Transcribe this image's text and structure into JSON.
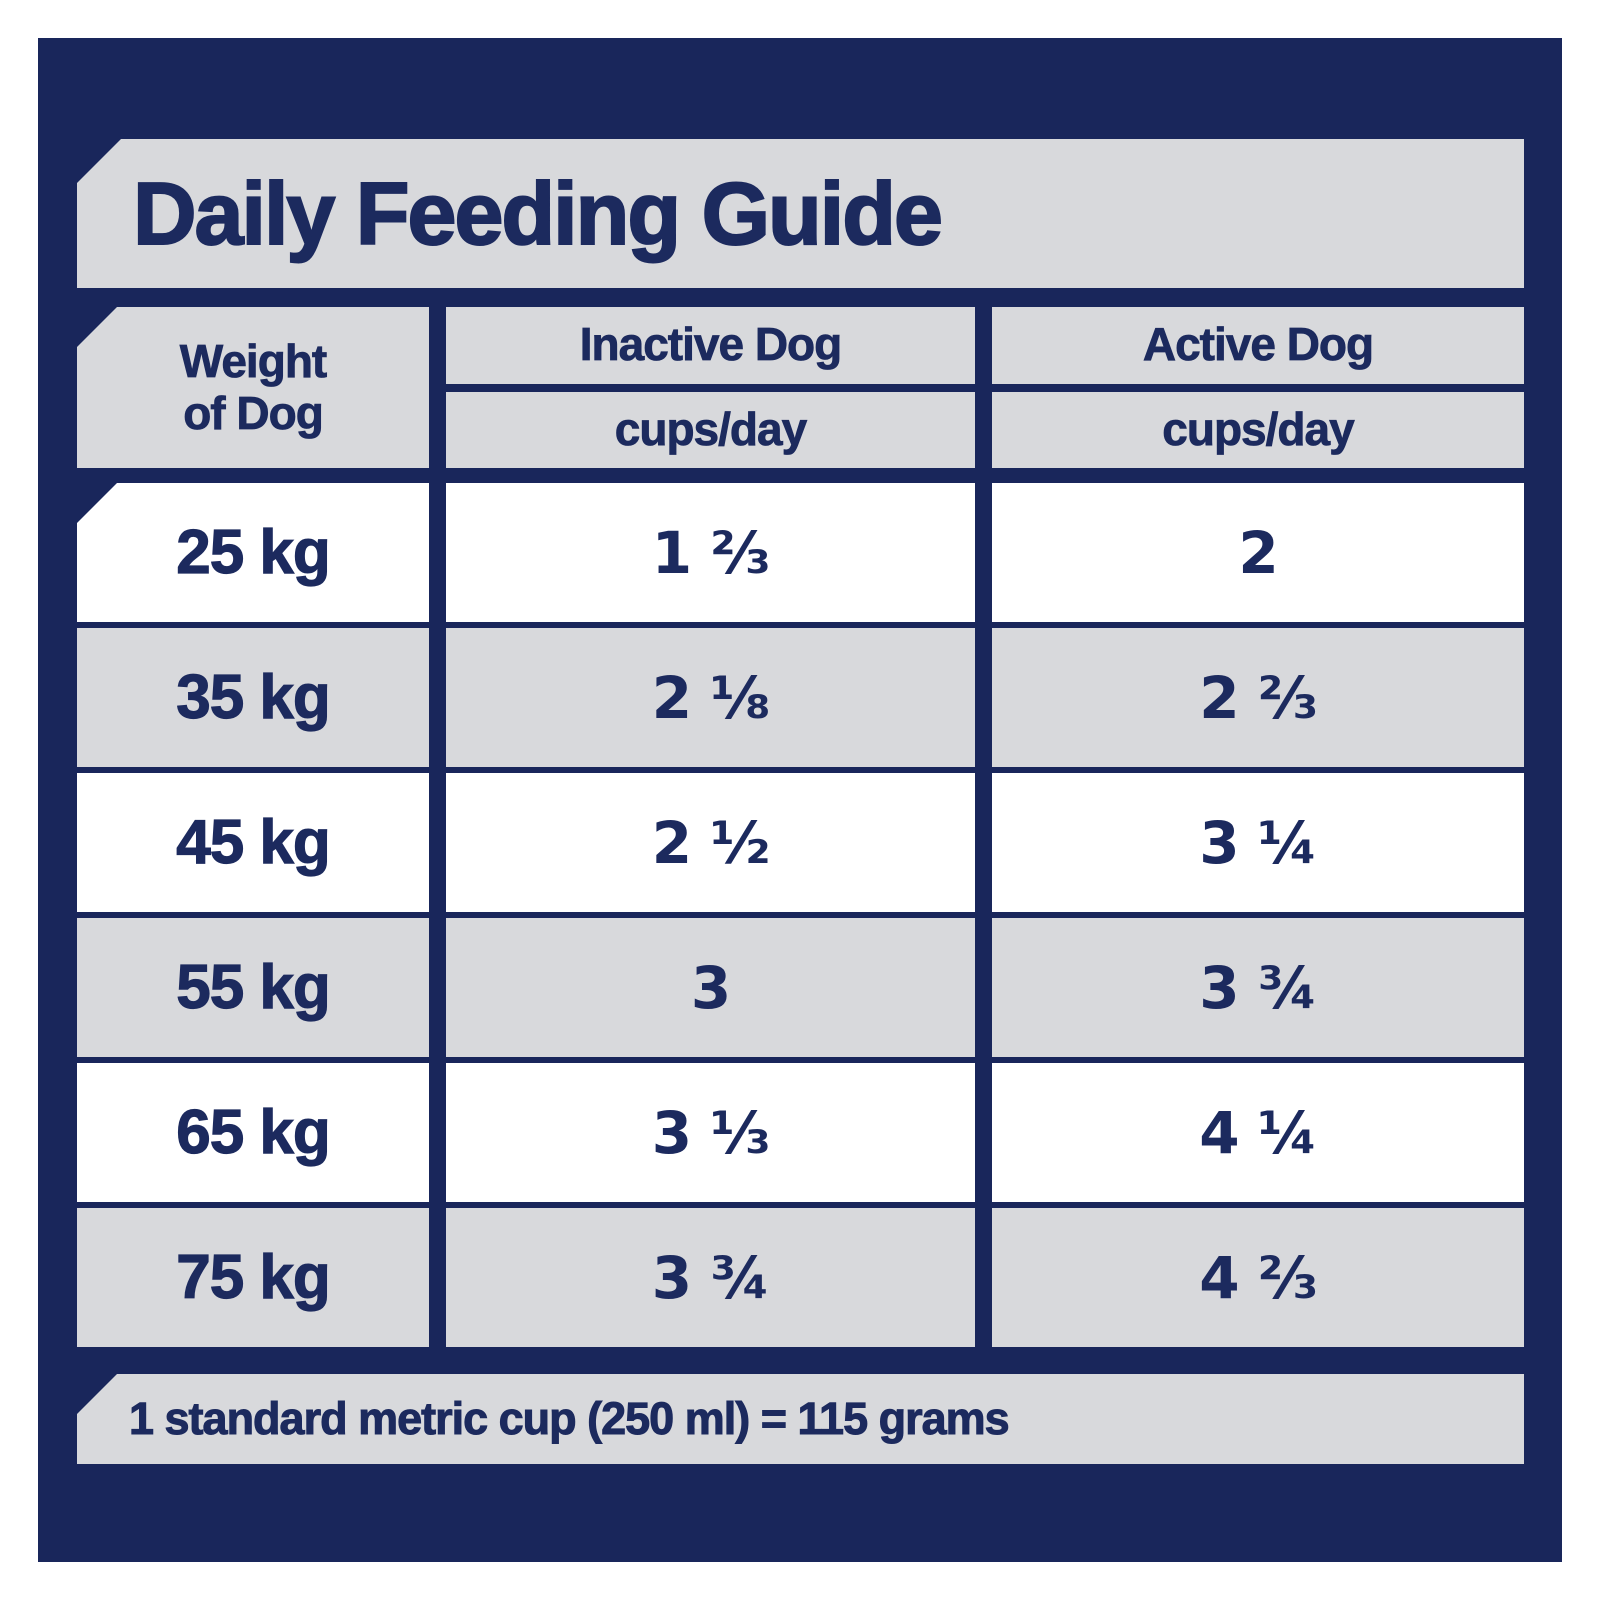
{
  "colors": {
    "panel_navy": "#19265b",
    "text_navy": "#1c2a5e",
    "bar_gray": "#d8d9dc",
    "row_white": "#ffffff"
  },
  "chart_data": {
    "type": "table",
    "title": "Daily Feeding Guide",
    "header": {
      "weight_line1": "Weight",
      "weight_line2": "of Dog",
      "inactive": "Inactive Dog",
      "active": "Active Dog",
      "unit": "cups/day"
    },
    "columns": [
      "Weight of Dog",
      "Inactive Dog (cups/day)",
      "Active Dog (cups/day)"
    ],
    "rows": [
      {
        "weight": "25 kg",
        "inactive_cups_per_day": "1 ⅔",
        "active_cups_per_day": "2"
      },
      {
        "weight": "35 kg",
        "inactive_cups_per_day": "2 ⅛",
        "active_cups_per_day": "2 ⅔"
      },
      {
        "weight": "45 kg",
        "inactive_cups_per_day": "2 ½",
        "active_cups_per_day": "3 ¼"
      },
      {
        "weight": "55 kg",
        "inactive_cups_per_day": "3",
        "active_cups_per_day": "3 ¾"
      },
      {
        "weight": "65 kg",
        "inactive_cups_per_day": "3 ⅓",
        "active_cups_per_day": "4 ¼"
      },
      {
        "weight": "75 kg",
        "inactive_cups_per_day": "3 ¾",
        "active_cups_per_day": "4 ⅔"
      }
    ],
    "footnote": "1 standard metric cup (250 ml) = 115 grams"
  }
}
